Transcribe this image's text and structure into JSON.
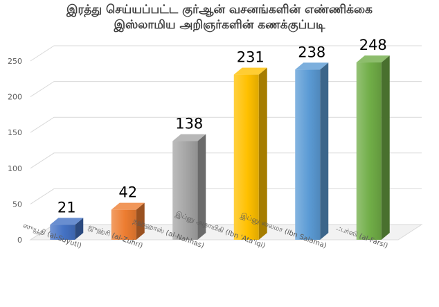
{
  "chart_data": {
    "type": "bar",
    "title_lines": [
      "இரத்து செய்யப்பட்ட குர்ஆன் வசனங்களின் எண்ணிக்கை",
      "இஸ்லாமிய அறிஞர்களின் கணக்குப்படி"
    ],
    "categories": [
      "ஸுயூதி  (al-Suyuti)",
      "ஜுஹ்ரி  (al-Zuhri)",
      "நஹ்ஹாஸ்  (al-Nahhas)",
      "இப்னு அதாயிகி (Ibn 'Ata'iqi)",
      "இப்னு ஸலமா  (Ibn Salama)",
      ".:பர்ஸி  (al-Farsi)"
    ],
    "values": [
      21,
      42,
      138,
      231,
      238,
      248
    ],
    "data_labels": [
      "21",
      "42",
      "138",
      "231",
      "238",
      "248"
    ],
    "y_ticks": [
      "0",
      "50",
      "100",
      "150",
      "200",
      "250"
    ],
    "y_tick_values": [
      0,
      50,
      100,
      150,
      200,
      250
    ],
    "ylim": [
      0,
      250
    ],
    "grid": true,
    "legend": "none",
    "colors": [
      "#4472C4",
      "#ED7D31",
      "#A5A5A5",
      "#FFC000",
      "#5B9BD5",
      "#70AD47"
    ]
  }
}
